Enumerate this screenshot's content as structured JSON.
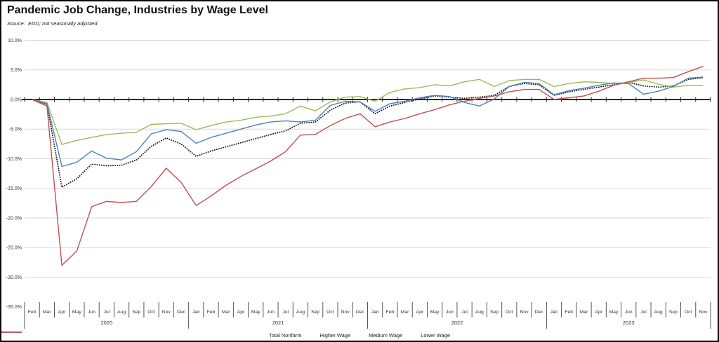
{
  "chart_data": {
    "type": "line",
    "title": "Pandemic Job Change, Industries by Wage Level",
    "source": "Source:  EDD; not seasonally adjusted",
    "x": [
      "Feb",
      "Mar",
      "Apr",
      "May",
      "Jun",
      "Jul",
      "Aug",
      "Sep",
      "Oct",
      "Nov",
      "Dec",
      "Jan",
      "Feb",
      "Mar",
      "Apr",
      "May",
      "Jun",
      "Jul",
      "Aug",
      "Sep",
      "Oct",
      "Nov",
      "Dec",
      "Jan",
      "Feb",
      "Mar",
      "Apr",
      "May",
      "Jun",
      "Jul",
      "Aug",
      "Sep",
      "Oct",
      "Nov",
      "Dec",
      "Jan",
      "Feb",
      "Mar",
      "Apr",
      "May",
      "Jun",
      "Jul",
      "Aug",
      "Sep",
      "Oct",
      "Nov"
    ],
    "year_groups": [
      {
        "label": "2020",
        "months": 11
      },
      {
        "label": "2021",
        "months": 12
      },
      {
        "label": "2022",
        "months": 12
      },
      {
        "label": "2023",
        "months": 11
      }
    ],
    "series": [
      {
        "name": "Total Nonfarm",
        "color": "#1a1a1a",
        "style": "dotted",
        "values": [
          0.0,
          -0.8,
          -14.8,
          -13.4,
          -10.9,
          -11.2,
          -11.1,
          -10.2,
          -7.9,
          -6.5,
          -7.5,
          -9.6,
          -8.7,
          -8.0,
          -7.3,
          -6.6,
          -5.9,
          -5.3,
          -4.0,
          -3.8,
          -1.8,
          -0.6,
          -0.4,
          -2.4,
          -1.1,
          -0.5,
          0.1,
          0.6,
          0.4,
          0.2,
          0.4,
          0.7,
          2.2,
          2.7,
          2.5,
          0.7,
          1.3,
          1.7,
          2.1,
          2.5,
          2.9,
          2.3,
          2.1,
          2.3,
          3.4,
          3.7
        ]
      },
      {
        "name": "Higher Wage",
        "color": "#9BBB59",
        "style": "solid",
        "values": [
          0.0,
          -0.5,
          -7.6,
          -6.9,
          -6.4,
          -5.9,
          -5.7,
          -5.5,
          -4.2,
          -4.1,
          -4.0,
          -5.1,
          -4.4,
          -3.8,
          -3.5,
          -3.0,
          -2.8,
          -2.4,
          -1.1,
          -1.9,
          -0.4,
          0.4,
          0.5,
          -0.3,
          1.2,
          1.8,
          2.0,
          2.5,
          2.3,
          3.0,
          3.4,
          2.2,
          3.2,
          3.4,
          3.4,
          2.2,
          2.7,
          3.0,
          2.9,
          2.7,
          2.9,
          3.3,
          2.6,
          2.1,
          2.4,
          2.4
        ]
      },
      {
        "name": "Medium Wage",
        "color": "#4F81BD",
        "style": "solid",
        "values": [
          0.0,
          -0.7,
          -11.3,
          -10.6,
          -8.7,
          -9.9,
          -10.2,
          -8.8,
          -5.8,
          -5.1,
          -5.4,
          -7.4,
          -6.4,
          -5.7,
          -5.0,
          -4.3,
          -3.8,
          -3.6,
          -3.8,
          -3.5,
          -1.0,
          -0.3,
          -0.4,
          -2.0,
          -0.7,
          -0.3,
          0.3,
          0.7,
          0.5,
          -0.5,
          -1.1,
          0.1,
          2.2,
          2.9,
          2.7,
          0.8,
          1.5,
          1.9,
          2.4,
          2.8,
          2.7,
          0.9,
          1.4,
          2.2,
          3.6,
          3.8
        ]
      },
      {
        "name": "Lower Wage",
        "color": "#C0504D",
        "style": "solid",
        "values": [
          0.0,
          -1.1,
          -28.0,
          -25.6,
          -18.1,
          -17.2,
          -17.4,
          -17.2,
          -14.7,
          -11.6,
          -14.0,
          -17.9,
          -16.3,
          -14.5,
          -13.0,
          -11.7,
          -10.4,
          -8.8,
          -6.0,
          -5.9,
          -4.4,
          -3.2,
          -2.4,
          -4.6,
          -3.8,
          -3.2,
          -2.4,
          -1.7,
          -0.9,
          -0.3,
          0.2,
          0.6,
          1.3,
          1.7,
          1.7,
          0.0,
          0.3,
          0.6,
          1.4,
          2.4,
          3.0,
          3.6,
          3.6,
          3.7,
          4.7,
          5.6
        ]
      }
    ],
    "ylim": [
      -35,
      10
    ],
    "yticks": [
      {
        "v": 10,
        "label": "10.0%"
      },
      {
        "v": 5,
        "label": "5.0%"
      },
      {
        "v": 0,
        "label": "0.0%"
      },
      {
        "v": -5,
        "label": "-5.0%"
      },
      {
        "v": -10,
        "label": "-10.0%"
      },
      {
        "v": -15,
        "label": "-15.0%"
      },
      {
        "v": -20,
        "label": "-20.0%"
      },
      {
        "v": -25,
        "label": "-25.0%"
      },
      {
        "v": -30,
        "label": "-30.0%"
      },
      {
        "v": -35,
        "label": "-35.0%"
      }
    ],
    "grid": true,
    "legend_position": "bottom"
  }
}
